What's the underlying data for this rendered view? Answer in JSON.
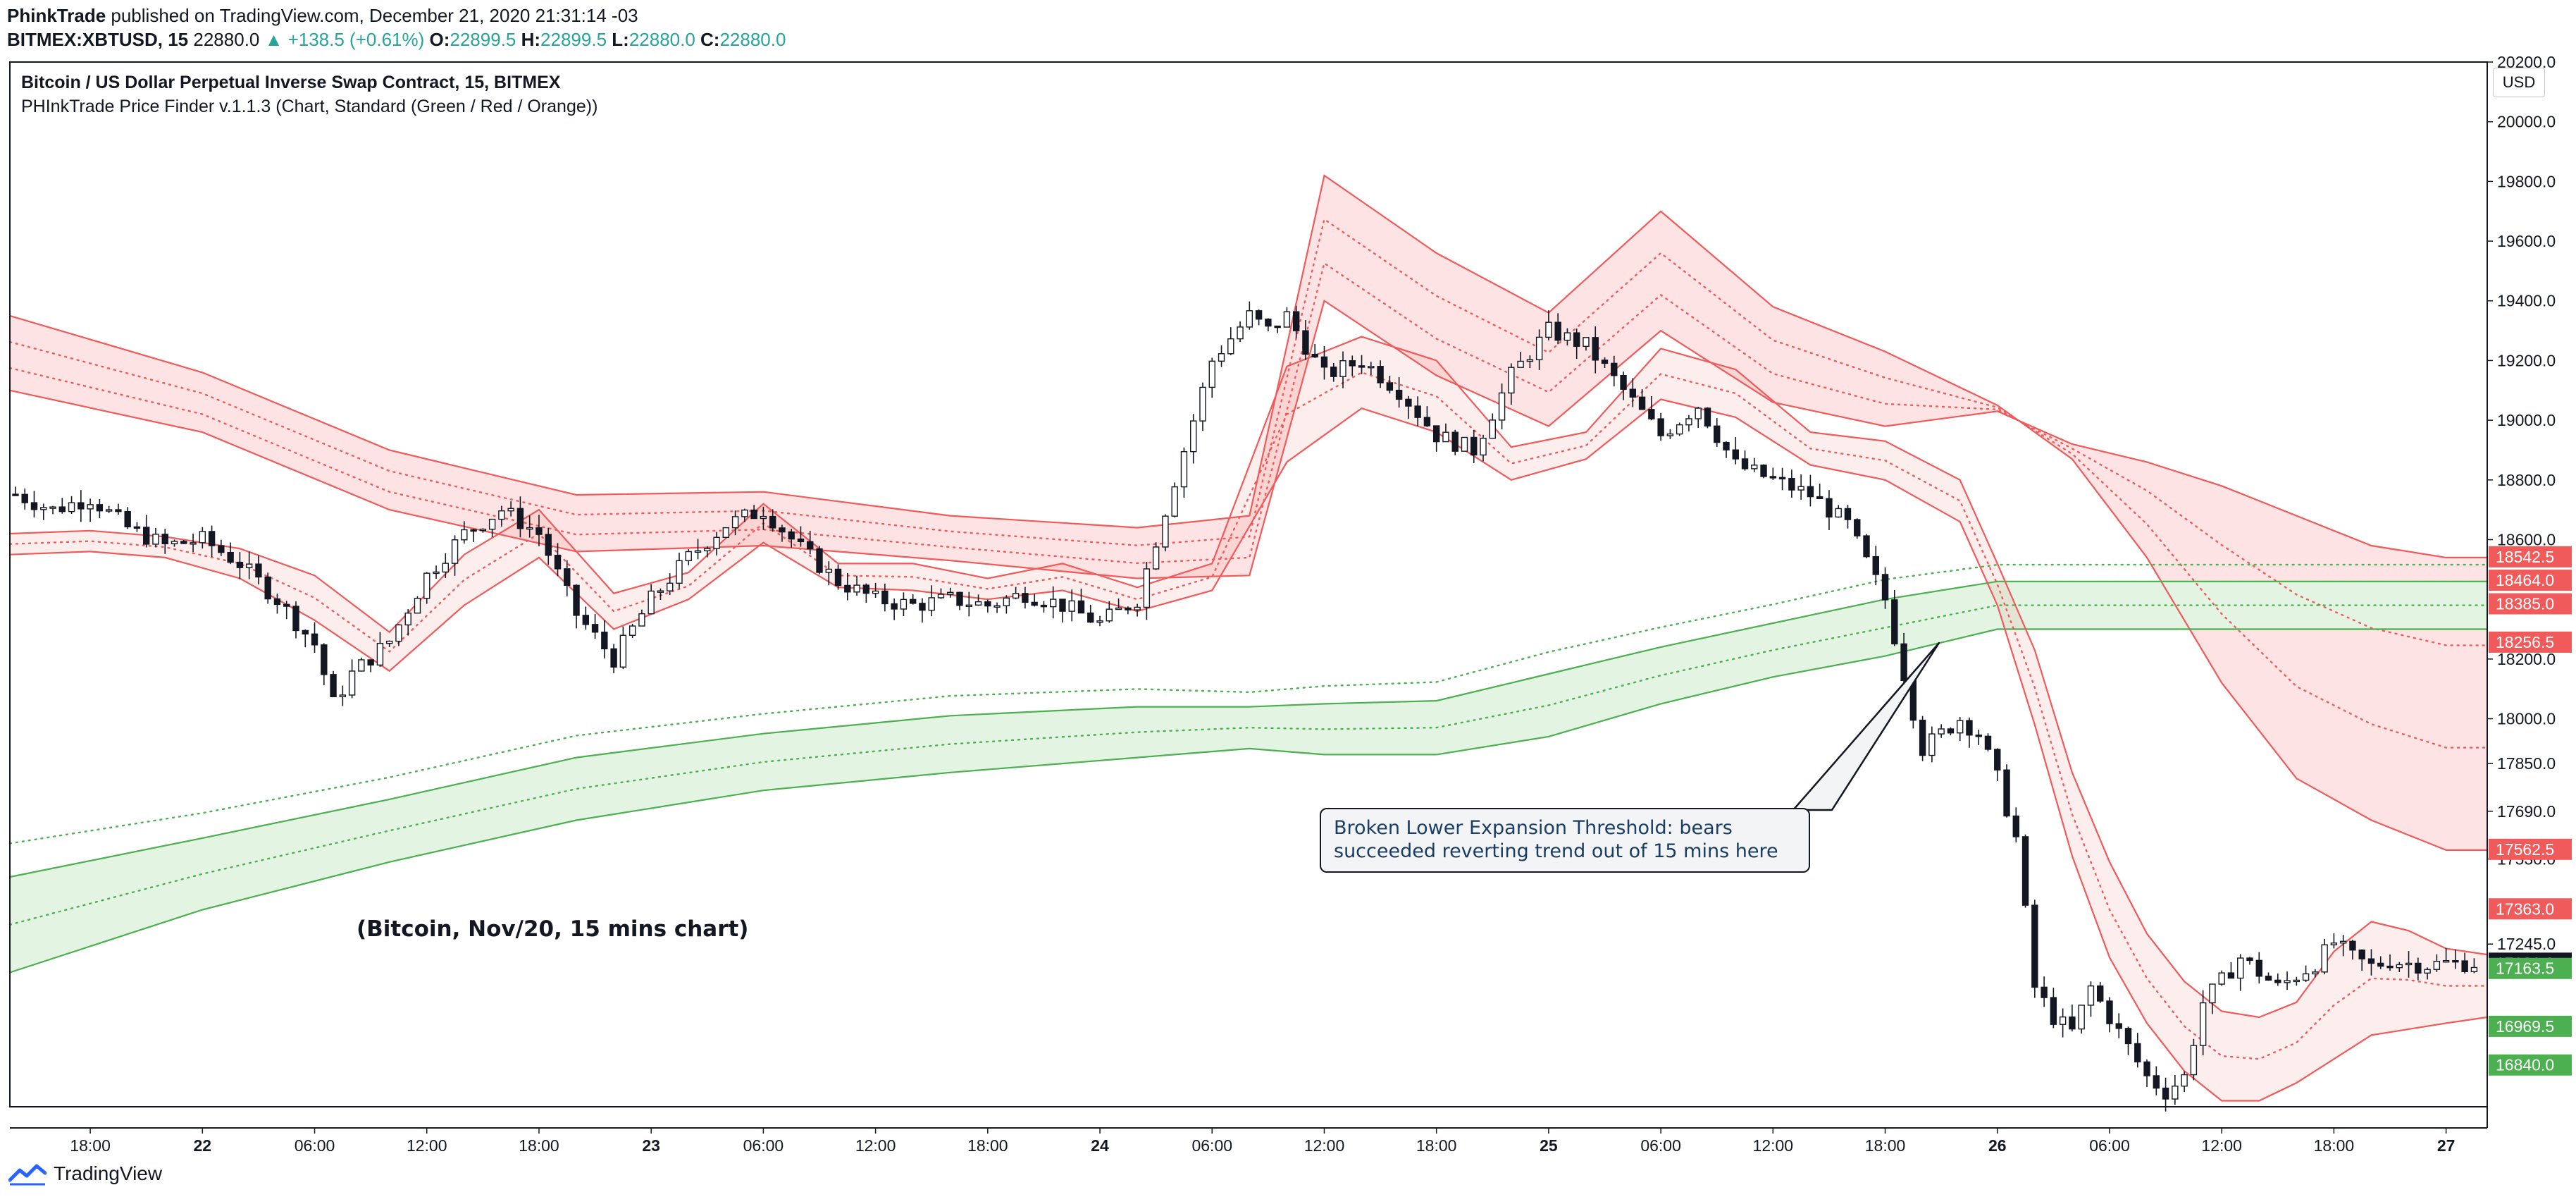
{
  "publisher": {
    "name": "PhinkTrade",
    "text": " published on TradingView.com, December 21, 2020 21:31:14 -03"
  },
  "symbol_bar": {
    "symbol": "BITMEX:XBTUSD, 15",
    "last": "22880.0",
    "change": "▲ +138.5 (+0.61%)",
    "o_label": "O:",
    "o": "22899.5",
    "h_label": "H:",
    "h": "22899.5",
    "l_label": "L:",
    "l": "22880.0",
    "c_label": "C:",
    "c": "22880.0"
  },
  "legend": {
    "title": "Bitcoin / US Dollar Perpetual Inverse Swap Contract, 15, BITMEX",
    "indicator": "PHInkTrade Price Finder v.1.1.3 (Chart, Standard (Green / Red / Orange))"
  },
  "currency_badge": "USD",
  "footer": {
    "brand": "TradingView",
    "logo_icon": "tradingview-logo-icon"
  },
  "annotation": {
    "line1": "Broken Lower Expansion Threshold: bears",
    "line2": "succeeded reverting trend out of 15 mins here"
  },
  "note": "(Bitcoin, Nov/20, 15 mins chart)",
  "colors": {
    "up_text": "#26a69a",
    "red_band": "#f05a5a",
    "red_fill": "#fde3e3",
    "green_band": "#4caf50",
    "green_fill": "#e3f4e3",
    "candle": "#131722",
    "axis_text": "#131722"
  },
  "chart_data": {
    "type": "line",
    "ylabel": "",
    "ylim": [
      16700,
      20200
    ],
    "y_ticks": [
      "20200.0",
      "20000.0",
      "19800.0",
      "19600.0",
      "19400.0",
      "19200.0",
      "19000.0",
      "18800.0",
      "18600.0",
      "18200.0",
      "18000.0",
      "17850.0",
      "17690.0",
      "17530.0",
      "17245.0"
    ],
    "y_tick_values": [
      20200,
      20000,
      19800,
      19600,
      19400,
      19200,
      19000,
      18800,
      18600,
      18200,
      18000,
      17850,
      17690,
      17530,
      17245
    ],
    "x_ticks": [
      "18:00",
      "22",
      "06:00",
      "12:00",
      "18:00",
      "23",
      "06:00",
      "12:00",
      "18:00",
      "24",
      "06:00",
      "12:00",
      "18:00",
      "25",
      "06:00",
      "12:00",
      "18:00",
      "26",
      "06:00",
      "12:00",
      "18:00",
      "27"
    ],
    "x_tick_hours": [
      -6,
      0,
      6,
      12,
      18,
      24,
      30,
      36,
      42,
      48,
      54,
      60,
      66,
      72,
      78,
      84,
      90,
      96,
      102,
      108,
      114,
      120
    ],
    "x_range_hours": [
      -10.3,
      122.2
    ],
    "bold_ticks": [
      "22",
      "23",
      "24",
      "25",
      "26",
      "27"
    ],
    "price_labels": [
      {
        "text": "18542.5",
        "value": 18542.5,
        "color": "#f05a5a"
      },
      {
        "text": "18464.0",
        "value": 18464.0,
        "color": "#f05a5a"
      },
      {
        "text": "18385.0",
        "value": 18385.0,
        "color": "#f05a5a"
      },
      {
        "text": "18256.5",
        "value": 18256.5,
        "color": "#f05a5a"
      },
      {
        "text": "17562.5",
        "value": 17562.5,
        "color": "#f05a5a"
      },
      {
        "text": "17363.0",
        "value": 17363.0,
        "color": "#f05a5a"
      },
      {
        "text": "17181.0",
        "value": 17181.0,
        "color": "#131722"
      },
      {
        "text": "17163.5",
        "value": 17163.5,
        "color": "#4caf50"
      },
      {
        "text": "16969.5",
        "value": 16969.5,
        "color": "#4caf50"
      },
      {
        "text": "16840.0",
        "value": 16840.0,
        "color": "#4caf50"
      }
    ],
    "series": [
      {
        "role": "short-upper",
        "x": [
          -10.3,
          -6,
          -2,
          2,
          6,
          10,
          14,
          18,
          22,
          26,
          30,
          34,
          38,
          42,
          46,
          50,
          54,
          58,
          62,
          66,
          70,
          74,
          78,
          82,
          86,
          90,
          94,
          96,
          98,
          100,
          102,
          104,
          106,
          108,
          110,
          112,
          114,
          116,
          118,
          120,
          122.2
        ],
        "y": [
          18620,
          18630,
          18610,
          18570,
          18480,
          18290,
          18550,
          18700,
          18420,
          18490,
          18720,
          18520,
          18520,
          18470,
          18520,
          18440,
          18520,
          19180,
          19280,
          19200,
          18910,
          18960,
          19240,
          19170,
          18960,
          18930,
          18800,
          18520,
          18230,
          17820,
          17520,
          17280,
          17120,
          17020,
          17000,
          17050,
          17220,
          17320,
          17290,
          17230,
          17210
        ]
      },
      {
        "role": "short-lower",
        "x": [
          -10.3,
          -6,
          -2,
          2,
          6,
          10,
          14,
          18,
          22,
          26,
          30,
          34,
          38,
          42,
          46,
          50,
          54,
          58,
          62,
          66,
          70,
          74,
          78,
          82,
          86,
          90,
          94,
          96,
          98,
          100,
          102,
          104,
          106,
          108,
          110,
          112,
          114,
          116,
          118,
          120,
          122.2
        ],
        "y": [
          18550,
          18560,
          18540,
          18470,
          18330,
          18160,
          18380,
          18540,
          18300,
          18400,
          18590,
          18440,
          18430,
          18400,
          18430,
          18360,
          18430,
          18860,
          19040,
          18960,
          18800,
          18870,
          19070,
          19010,
          18850,
          18800,
          18660,
          18380,
          17980,
          17540,
          17200,
          16980,
          16820,
          16720,
          16720,
          16780,
          16860,
          16940,
          16960,
          16980,
          17000
        ]
      },
      {
        "role": "long-red-upper",
        "x": [
          -10.3,
          0,
          10,
          20,
          30,
          40,
          50,
          56,
          60,
          66,
          72,
          78,
          84,
          90,
          96,
          100,
          104,
          108,
          112,
          116,
          120,
          122.2
        ],
        "y": [
          19350,
          19160,
          18900,
          18750,
          18760,
          18680,
          18640,
          18680,
          19820,
          19560,
          19360,
          19700,
          19380,
          19230,
          19050,
          18870,
          18540,
          18120,
          17800,
          17660,
          17560,
          17560
        ]
      },
      {
        "role": "long-red-lower",
        "x": [
          -10.3,
          0,
          10,
          20,
          30,
          40,
          50,
          56,
          60,
          66,
          72,
          78,
          84,
          90,
          96,
          100,
          104,
          108,
          112,
          116,
          120,
          122.2
        ],
        "y": [
          19100,
          18960,
          18700,
          18560,
          18580,
          18530,
          18470,
          18480,
          19400,
          19150,
          18980,
          19300,
          19060,
          18980,
          19030,
          18920,
          18860,
          18780,
          18680,
          18580,
          18540,
          18540
        ]
      },
      {
        "role": "long-green-upper",
        "x": [
          -10.3,
          0,
          10,
          20,
          30,
          40,
          50,
          56,
          60,
          66,
          72,
          78,
          84,
          90,
          96,
          100,
          104,
          108,
          112,
          116,
          120,
          122.2
        ],
        "y": [
          17470,
          17600,
          17730,
          17870,
          17950,
          18010,
          18040,
          18040,
          18050,
          18060,
          18150,
          18240,
          18320,
          18400,
          18460,
          18460,
          18460,
          18460,
          18460,
          18460,
          18460,
          18460
        ]
      },
      {
        "role": "long-green-lower",
        "x": [
          -10.3,
          0,
          10,
          20,
          30,
          40,
          50,
          56,
          60,
          66,
          72,
          78,
          84,
          90,
          96,
          100,
          104,
          108,
          112,
          116,
          120,
          122.2
        ],
        "y": [
          17150,
          17360,
          17520,
          17660,
          17760,
          17820,
          17870,
          17900,
          17880,
          17880,
          17940,
          18050,
          18140,
          18210,
          18300,
          18300,
          18300,
          18300,
          18300,
          18300,
          18300,
          18300
        ]
      },
      {
        "role": "price-close",
        "x": [
          -10.3,
          -8,
          -6,
          -4,
          -2,
          0,
          2,
          4,
          6,
          7,
          8,
          10,
          12,
          14,
          16,
          18,
          20,
          22,
          24,
          26,
          28,
          30,
          32,
          34,
          36,
          38,
          40,
          42,
          44,
          46,
          48,
          50,
          52,
          54,
          56,
          57,
          58,
          60,
          62,
          64,
          66,
          68,
          70,
          72,
          74,
          76,
          78,
          80,
          82,
          84,
          86,
          88,
          90,
          92,
          94,
          95,
          96,
          97,
          98,
          99,
          100,
          101,
          102,
          103,
          104,
          105,
          106,
          107,
          108,
          109,
          110,
          111,
          112,
          113,
          114,
          115,
          116,
          117,
          118,
          119,
          120,
          121,
          122.2
        ],
        "y": [
          18760,
          18700,
          18740,
          18640,
          18580,
          18600,
          18520,
          18400,
          18250,
          18050,
          18150,
          18260,
          18480,
          18620,
          18700,
          18620,
          18350,
          18200,
          18400,
          18540,
          18650,
          18700,
          18570,
          18460,
          18400,
          18380,
          18400,
          18380,
          18420,
          18380,
          18320,
          18400,
          18800,
          19200,
          19350,
          19300,
          19350,
          19150,
          19200,
          19100,
          18950,
          18900,
          19150,
          19300,
          19250,
          19100,
          18950,
          19050,
          18850,
          18800,
          18750,
          18650,
          18400,
          17900,
          18000,
          17950,
          17800,
          17600,
          17100,
          17000,
          16950,
          17100,
          17000,
          16900,
          16800,
          16750,
          16800,
          17050,
          17120,
          17200,
          17150,
          17100,
          17140,
          17180,
          17250,
          17200,
          17170,
          17190,
          17180,
          17175,
          17181,
          17181,
          17181
        ]
      }
    ]
  }
}
